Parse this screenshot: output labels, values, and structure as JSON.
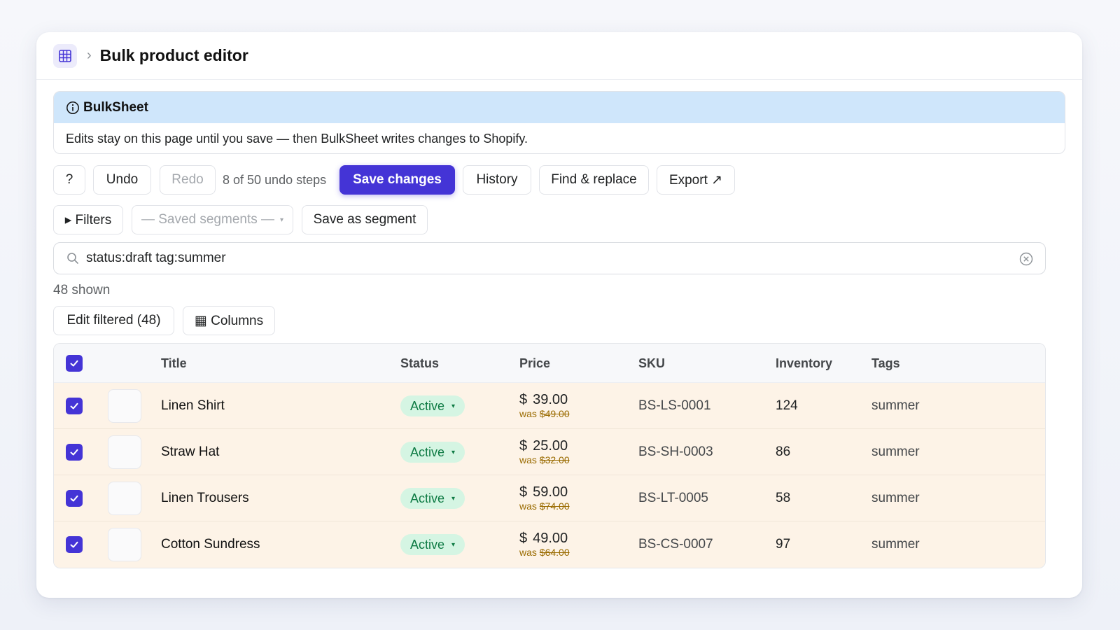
{
  "header": {
    "icon": "spreadsheet-icon",
    "separator": "›",
    "title": "Bulk product editor"
  },
  "banner": {
    "title": "BulkSheet",
    "message": "Edits stay on this page until you save — then BulkSheet writes changes to Shopify."
  },
  "toolbar": {
    "help_label": "?",
    "undo_label": "Undo",
    "redo_label": "Redo",
    "undo_steps": "8 of 50 undo steps",
    "save_label": "Save changes",
    "history_label": "History",
    "find_replace_label": "Find & replace",
    "export_label": "Export ↗"
  },
  "filters": {
    "filters_label": "▸ Filters",
    "segments_placeholder": "— Saved segments —",
    "save_segment_label": "Save as segment"
  },
  "search": {
    "value": "status:draft tag:summer"
  },
  "results": {
    "shown": "48 shown",
    "edit_filtered_label": "Edit filtered (48)",
    "columns_label": "▦ Columns"
  },
  "table": {
    "columns": [
      "Title",
      "Status",
      "Price",
      "SKU",
      "Inventory",
      "Tags"
    ],
    "rows": [
      {
        "title": "Linen Shirt",
        "status": "Active",
        "currency": "$",
        "price": "39.00",
        "was": "was ",
        "was_price": "$49.00",
        "sku": "BS-LS-0001",
        "inventory": "124",
        "tags": "summer"
      },
      {
        "title": "Straw Hat",
        "status": "Active",
        "currency": "$",
        "price": "25.00",
        "was": "was ",
        "was_price": "$32.00",
        "sku": "BS-SH-0003",
        "inventory": "86",
        "tags": "summer"
      },
      {
        "title": "Linen Trousers",
        "status": "Active",
        "currency": "$",
        "price": "59.00",
        "was": "was ",
        "was_price": "$74.00",
        "sku": "BS-LT-0005",
        "inventory": "58",
        "tags": "summer"
      },
      {
        "title": "Cotton Sundress",
        "status": "Active",
        "currency": "$",
        "price": "49.00",
        "was": "was ",
        "was_price": "$64.00",
        "sku": "BS-CS-0007",
        "inventory": "97",
        "tags": "summer"
      }
    ]
  },
  "colors": {
    "primary": "#4434d6",
    "banner": "#cfe6fb",
    "row_highlight": "#fdf3e7",
    "status_active_bg": "#d5f5e3",
    "status_active_text": "#0d7a43"
  }
}
